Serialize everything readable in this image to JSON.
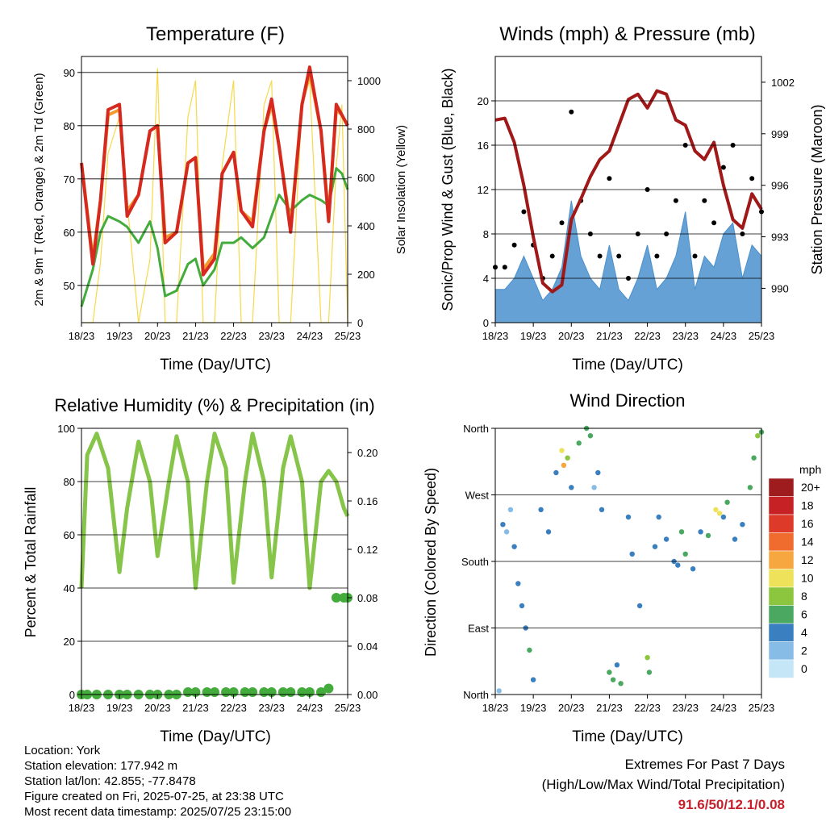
{
  "charts": {
    "temperature": {
      "title": "Temperature (F)",
      "xlabel": "Time (Day/UTC)",
      "ylabel_left": "2m & 9m T (Red, Orange) & 2m Td (Green)",
      "ylabel_right": "Solar Insolation (Yellow)",
      "xticks": [
        "18/23",
        "19/23",
        "20/23",
        "21/23",
        "22/23",
        "23/23",
        "24/23",
        "25/23"
      ],
      "yticks_left": [
        "50",
        "60",
        "70",
        "80",
        "90"
      ],
      "yticks_right": [
        "0",
        "200",
        "400",
        "600",
        "800",
        "1000"
      ]
    },
    "winds": {
      "title": "Winds (mph) & Pressure (mb)",
      "xlabel": "Time (Day/UTC)",
      "ylabel_left": "Sonic/Prop Wind & Gust (Blue, Black)",
      "ylabel_right": "Station Pressure (Maroon)",
      "xticks": [
        "18/23",
        "19/23",
        "20/23",
        "21/23",
        "22/23",
        "23/23",
        "24/23",
        "25/23"
      ],
      "yticks_left": [
        "0",
        "4",
        "8",
        "12",
        "16",
        "20"
      ],
      "yticks_right": [
        "990",
        "993",
        "996",
        "999",
        "1002"
      ]
    },
    "humidity": {
      "title": "Relative Humidity (%) & Precipitation (in)",
      "xlabel": "Time (Day/UTC)",
      "ylabel_left": "Percent & Total Rainfall",
      "xticks": [
        "18/23",
        "19/23",
        "20/23",
        "21/23",
        "22/23",
        "23/23",
        "24/23",
        "25/23"
      ],
      "yticks_left": [
        "0",
        "20",
        "40",
        "60",
        "80",
        "100"
      ],
      "yticks_right": [
        "0.00",
        "0.04",
        "0.08",
        "0.12",
        "0.16",
        "0.20"
      ]
    },
    "direction": {
      "title": "Wind Direction",
      "xlabel": "Time (Day/UTC)",
      "ylabel_left": "Direction (Colored By Speed)",
      "xticks": [
        "18/23",
        "19/23",
        "20/23",
        "21/23",
        "22/23",
        "23/23",
        "24/23",
        "25/23"
      ],
      "yticks_left": [
        "North",
        "East",
        "South",
        "West",
        "North"
      ],
      "legend_title": "mph",
      "legend_labels": [
        "20+",
        "18",
        "16",
        "14",
        "12",
        "10",
        "8",
        "6",
        "4",
        "2",
        "0"
      ],
      "legend_colors": [
        "#9e1c1e",
        "#c62226",
        "#dd3a2a",
        "#ef6b2e",
        "#f7a740",
        "#ede25a",
        "#8cc63e",
        "#4aa860",
        "#3a7fbf",
        "#86bce6",
        "#c4e6f7"
      ]
    }
  },
  "chart_data": [
    {
      "type": "line",
      "title": "Temperature (F)",
      "xlabel": "Time (Day/UTC)",
      "ylabel": "2m & 9m T (Red, Orange) & 2m Td (Green)",
      "y2label": "Solar Insolation (Yellow)",
      "xlim": [
        0,
        7
      ],
      "ylim": [
        43,
        93
      ],
      "y2lim": [
        0,
        1100
      ],
      "x": [
        0,
        0.3,
        0.5,
        0.7,
        1.0,
        1.2,
        1.5,
        1.8,
        2.0,
        2.2,
        2.5,
        2.8,
        3.0,
        3.2,
        3.5,
        3.7,
        4.0,
        4.2,
        4.5,
        4.8,
        5.0,
        5.2,
        5.5,
        5.8,
        6.0,
        6.3,
        6.5,
        6.7,
        6.85,
        7.0
      ],
      "series": [
        {
          "name": "2m T",
          "color": "#d62a20",
          "values": [
            73,
            54,
            66,
            83,
            84,
            63,
            67,
            79,
            80,
            58,
            60,
            73,
            74,
            52,
            55,
            71,
            75,
            64,
            61,
            79,
            85,
            76,
            60,
            84,
            91,
            79,
            62,
            84,
            82,
            80
          ]
        },
        {
          "name": "9m T",
          "color": "#f39a2e",
          "values": [
            73,
            55,
            66,
            82,
            83,
            64,
            67,
            79,
            80,
            59,
            60,
            73,
            74,
            53,
            56,
            71,
            75,
            64,
            62,
            79,
            84,
            76,
            61,
            84,
            90,
            79,
            63,
            83,
            82,
            80
          ]
        },
        {
          "name": "2m Td",
          "color": "#44ac3c",
          "values": [
            46,
            53,
            60,
            63,
            62,
            61,
            58,
            62,
            57,
            48,
            49,
            54,
            55,
            50,
            53,
            58,
            58,
            59,
            57,
            59,
            63,
            67,
            64,
            66,
            67,
            66,
            65,
            72,
            71,
            68
          ]
        },
        {
          "name": "Solar Insolation",
          "axis": "right",
          "color": "#f7d94a",
          "values": [
            0,
            0,
            250,
            700,
            850,
            500,
            0,
            260,
            1050,
            0,
            0,
            850,
            1000,
            0,
            0,
            650,
            1000,
            0,
            0,
            900,
            1000,
            0,
            0,
            900,
            1000,
            0,
            0,
            650,
            900,
            0
          ]
        }
      ]
    },
    {
      "type": "scatter",
      "title": "Winds (mph) & Pressure (mb)",
      "xlabel": "Time (Day/UTC)",
      "ylabel": "Sonic/Prop Wind & Gust (Blue, Black)",
      "y2label": "Station Pressure (Maroon)",
      "xlim": [
        0,
        7
      ],
      "ylim": [
        0,
        24
      ],
      "y2lim": [
        988.0,
        1003.5
      ],
      "x": [
        0,
        0.25,
        0.5,
        0.75,
        1.0,
        1.25,
        1.5,
        1.75,
        2.0,
        2.25,
        2.5,
        2.75,
        3.0,
        3.25,
        3.5,
        3.75,
        4.0,
        4.25,
        4.5,
        4.75,
        5.0,
        5.25,
        5.5,
        5.75,
        6.0,
        6.25,
        6.5,
        6.75,
        7.0
      ],
      "series": [
        {
          "name": "Wind",
          "color": "#4a90cc",
          "values": [
            3,
            3,
            4,
            6,
            4,
            2,
            3,
            5,
            11,
            6,
            4,
            3,
            7,
            3,
            2,
            4,
            7,
            3,
            4,
            6,
            10,
            3,
            6,
            5,
            8,
            9,
            4,
            7,
            6
          ]
        },
        {
          "name": "Gust",
          "color": "#000000",
          "values": [
            5,
            5,
            7,
            10,
            7,
            4,
            6,
            9,
            19,
            11,
            8,
            6,
            13,
            6,
            4,
            8,
            12,
            6,
            8,
            11,
            16,
            6,
            11,
            9,
            14,
            16,
            8,
            13,
            10
          ]
        },
        {
          "name": "Station Pressure",
          "axis": "right",
          "color": "#a01818",
          "values": [
            999.8,
            999.9,
            998.5,
            996.0,
            993.0,
            990.3,
            989.8,
            990.2,
            994.0,
            995.2,
            996.5,
            997.5,
            998.0,
            999.5,
            1001.0,
            1001.3,
            1000.5,
            1001.5,
            1001.3,
            999.8,
            999.5,
            998.0,
            997.5,
            998.5,
            996.0,
            994.0,
            993.5,
            995.5,
            994.6
          ]
        }
      ]
    },
    {
      "type": "line",
      "title": "Relative Humidity (%) & Precipitation (in)",
      "xlabel": "Time (Day/UTC)",
      "ylabel": "Percent & Total Rainfall",
      "xlim": [
        0,
        7
      ],
      "ylim": [
        0,
        100
      ],
      "y2lim": [
        0,
        0.22
      ],
      "x": [
        0,
        0.15,
        0.4,
        0.7,
        1.0,
        1.2,
        1.5,
        1.8,
        2.0,
        2.3,
        2.5,
        2.8,
        3.0,
        3.3,
        3.5,
        3.8,
        4.0,
        4.3,
        4.5,
        4.8,
        5.0,
        5.3,
        5.5,
        5.8,
        6.0,
        6.3,
        6.5,
        6.7,
        6.9,
        7.0
      ],
      "series": [
        {
          "name": "Relative Humidity",
          "color": "#86c44a",
          "values": [
            40,
            90,
            98,
            85,
            46,
            70,
            95,
            80,
            52,
            80,
            97,
            80,
            40,
            80,
            98,
            85,
            42,
            80,
            98,
            80,
            44,
            85,
            97,
            80,
            40,
            80,
            84,
            80,
            70,
            67
          ]
        },
        {
          "name": "Total Precipitation",
          "axis": "right",
          "color": "#44ac3c",
          "values": [
            0,
            0,
            0,
            0,
            0,
            0,
            0,
            0,
            0,
            0,
            0,
            0.002,
            0.002,
            0.002,
            0.002,
            0.002,
            0.002,
            0.002,
            0.002,
            0.002,
            0.002,
            0.002,
            0.002,
            0.002,
            0.002,
            0.002,
            0.005,
            0.08,
            0.08,
            0.08
          ]
        }
      ]
    },
    {
      "type": "scatter",
      "title": "Wind Direction",
      "xlabel": "Time (Day/UTC)",
      "ylabel": "Direction (Colored By Speed)",
      "xlim": [
        0,
        7
      ],
      "ylim": [
        0,
        360
      ],
      "yticks": [
        "North",
        "East",
        "South",
        "West",
        "North"
      ],
      "legend_title": "mph",
      "points": [
        [
          0.2,
          230,
          3
        ],
        [
          0.3,
          220,
          2
        ],
        [
          0.4,
          250,
          2
        ],
        [
          0.5,
          200,
          3
        ],
        [
          0.1,
          5,
          2
        ],
        [
          0.6,
          150,
          4
        ],
        [
          0.7,
          120,
          4
        ],
        [
          0.8,
          90,
          4
        ],
        [
          0.9,
          60,
          5
        ],
        [
          1.0,
          20,
          4
        ],
        [
          1.2,
          250,
          3
        ],
        [
          1.4,
          220,
          3
        ],
        [
          1.6,
          300,
          3
        ],
        [
          1.75,
          330,
          10
        ],
        [
          1.8,
          310,
          12
        ],
        [
          1.9,
          320,
          8
        ],
        [
          2.0,
          280,
          4
        ],
        [
          2.2,
          340,
          5
        ],
        [
          2.4,
          360,
          5
        ],
        [
          2.5,
          350,
          6
        ],
        [
          2.6,
          280,
          2
        ],
        [
          2.7,
          300,
          3
        ],
        [
          2.8,
          250,
          3
        ],
        [
          3.0,
          30,
          6
        ],
        [
          3.1,
          20,
          5
        ],
        [
          3.2,
          40,
          4
        ],
        [
          3.3,
          15,
          6
        ],
        [
          3.5,
          240,
          3
        ],
        [
          3.6,
          190,
          3
        ],
        [
          3.8,
          120,
          4
        ],
        [
          4.0,
          50,
          7
        ],
        [
          4.05,
          30,
          6
        ],
        [
          4.2,
          200,
          3
        ],
        [
          4.3,
          240,
          3
        ],
        [
          4.5,
          210,
          3
        ],
        [
          4.7,
          180,
          4
        ],
        [
          4.8,
          175,
          4
        ],
        [
          4.9,
          220,
          5
        ],
        [
          5.0,
          190,
          5
        ],
        [
          5.2,
          170,
          3
        ],
        [
          5.4,
          220,
          3
        ],
        [
          5.6,
          215,
          5
        ],
        [
          5.8,
          250,
          9
        ],
        [
          5.9,
          245,
          10
        ],
        [
          6.0,
          240,
          4
        ],
        [
          6.1,
          260,
          5
        ],
        [
          6.3,
          210,
          4
        ],
        [
          6.5,
          230,
          3
        ],
        [
          6.7,
          280,
          6
        ],
        [
          6.8,
          320,
          6
        ],
        [
          6.9,
          350,
          7
        ],
        [
          7.0,
          355,
          5
        ]
      ]
    }
  ],
  "info": {
    "location": "Location: York",
    "elevation": "Station elevation: 177.942 m",
    "latlon": "Station lat/lon: 42.855; -77.8478",
    "created": "Figure created on Fri, 2025-07-25, at 23:38 UTC",
    "timestamp": "Most recent data timestamp: 2025/07/25 23:15:00"
  },
  "extremes": {
    "title": "Extremes For Past 7 Days",
    "subtitle": "(High/Low/Max Wind/Total Precipitation)",
    "value": "91.6/50/12.1/0.08"
  }
}
